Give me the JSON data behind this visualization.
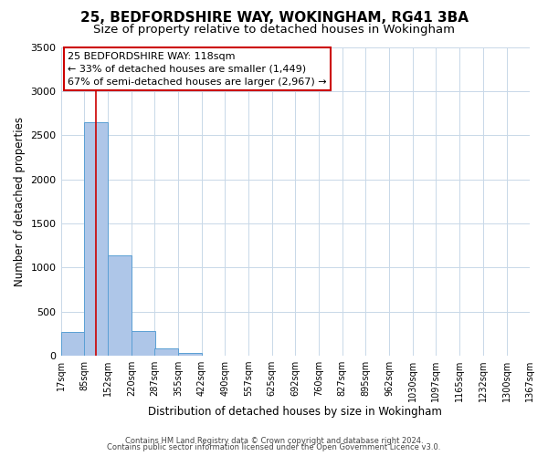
{
  "title1": "25, BEDFORDSHIRE WAY, WOKINGHAM, RG41 3BA",
  "title2": "Size of property relative to detached houses in Wokingham",
  "xlabel": "Distribution of detached houses by size in Wokingham",
  "ylabel": "Number of detached properties",
  "bin_edges": [
    17,
    85,
    152,
    220,
    287,
    355,
    422,
    490,
    557,
    625,
    692,
    760,
    827,
    895,
    962,
    1030,
    1097,
    1165,
    1232,
    1300,
    1367
  ],
  "bar_heights": [
    265,
    2650,
    1140,
    280,
    85,
    30,
    0,
    0,
    0,
    0,
    0,
    0,
    0,
    0,
    0,
    0,
    0,
    0,
    0,
    0
  ],
  "bar_color": "#aec6e8",
  "bar_edge_color": "#5a9fd4",
  "red_line_x": 118,
  "ylim": [
    0,
    3500
  ],
  "yticks": [
    0,
    500,
    1000,
    1500,
    2000,
    2500,
    3000,
    3500
  ],
  "annotation_title": "25 BEDFORDSHIRE WAY: 118sqm",
  "annotation_line1": "← 33% of detached houses are smaller (1,449)",
  "annotation_line2": "67% of semi-detached houses are larger (2,967) →",
  "annotation_box_color": "#ffffff",
  "annotation_border_color": "#cc0000",
  "footer1": "Contains HM Land Registry data © Crown copyright and database right 2024.",
  "footer2": "Contains public sector information licensed under the Open Government Licence v3.0.",
  "background_color": "#ffffff",
  "grid_color": "#c8d8e8",
  "title1_fontsize": 11,
  "title2_fontsize": 9.5,
  "tick_label_fontsize": 7,
  "ytick_fontsize": 8,
  "ylabel_fontsize": 8.5,
  "xlabel_fontsize": 8.5,
  "annotation_fontsize": 8,
  "footer_fontsize": 6
}
